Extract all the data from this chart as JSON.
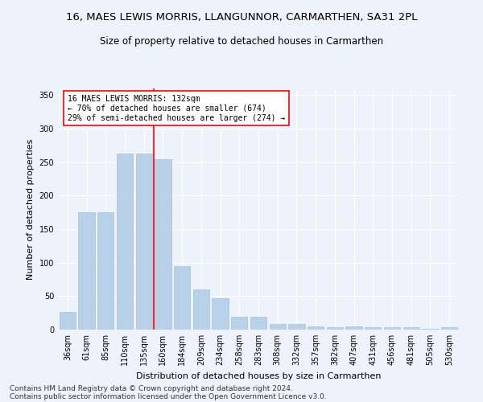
{
  "title": "16, MAES LEWIS MORRIS, LLANGUNNOR, CARMARTHEN, SA31 2PL",
  "subtitle": "Size of property relative to detached houses in Carmarthen",
  "xlabel": "Distribution of detached houses by size in Carmarthen",
  "ylabel": "Number of detached properties",
  "bar_values": [
    27,
    175,
    175,
    263,
    263,
    255,
    95,
    60,
    47,
    19,
    19,
    9,
    8,
    5,
    4,
    5,
    4,
    4,
    4,
    1,
    4
  ],
  "bar_color": "#b8d0e8",
  "bar_edge_color": "#9ab8d4",
  "categories": [
    "36sqm",
    "61sqm",
    "85sqm",
    "110sqm",
    "135sqm",
    "160sqm",
    "184sqm",
    "209sqm",
    "234sqm",
    "258sqm",
    "283sqm",
    "308sqm",
    "332sqm",
    "357sqm",
    "382sqm",
    "407sqm",
    "431sqm",
    "456sqm",
    "481sqm",
    "505sqm",
    "530sqm"
  ],
  "ylim": [
    0,
    360
  ],
  "yticks": [
    0,
    50,
    100,
    150,
    200,
    250,
    300,
    350
  ],
  "vline_index": 4.5,
  "annotation_line1": "16 MAES LEWIS MORRIS: 132sqm",
  "annotation_line2": "← 70% of detached houses are smaller (674)",
  "annotation_line3": "29% of semi-detached houses are larger (274) →",
  "vline_color": "red",
  "footer1": "Contains HM Land Registry data © Crown copyright and database right 2024.",
  "footer2": "Contains public sector information licensed under the Open Government Licence v3.0.",
  "background_color": "#eef2fa",
  "grid_color": "white",
  "title_fontsize": 9.5,
  "subtitle_fontsize": 8.5,
  "axis_label_fontsize": 8,
  "tick_fontsize": 7,
  "annotation_fontsize": 7,
  "footer_fontsize": 6.5
}
